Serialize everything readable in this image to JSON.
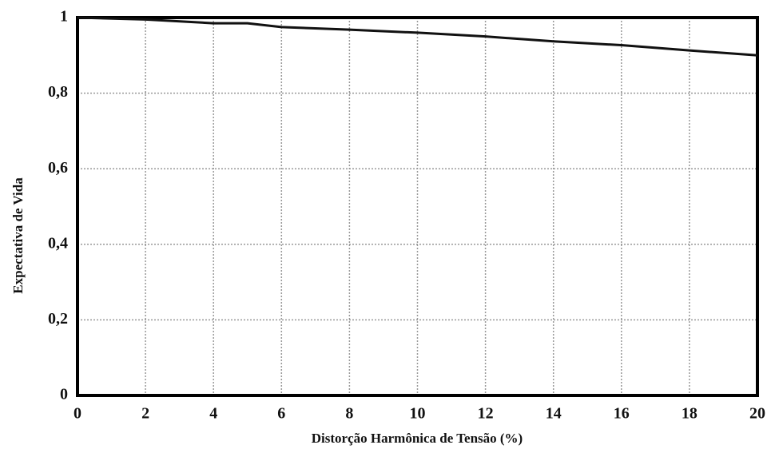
{
  "chart_data": {
    "type": "line",
    "xlabel": "Distorção Harmônica de Tensão (%)",
    "ylabel": "Expectativa de Vida",
    "x": [
      0,
      2,
      4,
      5,
      6,
      8,
      10,
      12,
      14,
      16,
      18,
      20
    ],
    "series": [
      {
        "color": "#111111",
        "values": [
          1.0,
          0.995,
          0.985,
          0.985,
          0.975,
          0.968,
          0.96,
          0.95,
          0.937,
          0.927,
          0.913,
          0.9
        ]
      }
    ],
    "xlim": [
      0,
      20
    ],
    "xticks": [
      0,
      2,
      4,
      6,
      8,
      10,
      12,
      14,
      16,
      18,
      20
    ],
    "ylim": [
      0,
      1
    ],
    "yticks": [
      0,
      {
        "value": 0.2,
        "label": "0,2"
      },
      {
        "value": 0.4,
        "label": "0,4"
      },
      {
        "value": 0.6,
        "label": "0,6"
      },
      {
        "value": 0.8,
        "label": "0,8"
      },
      1
    ],
    "grid": true
  }
}
